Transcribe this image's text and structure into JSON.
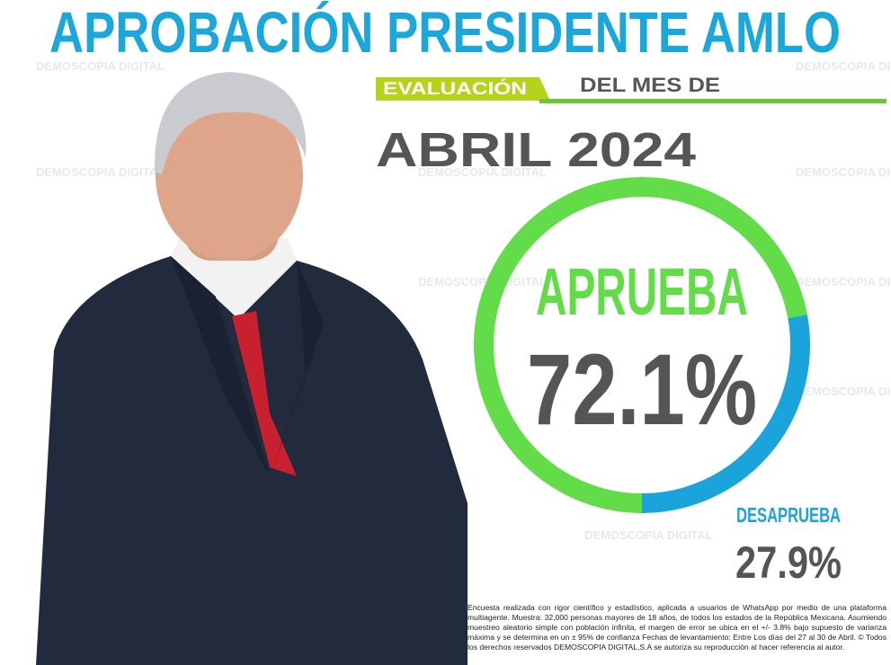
{
  "chart_data": {
    "type": "pie",
    "title": "APROBACIÓN PRESIDENTE AMLO",
    "badge": "EVALUACIÓN",
    "subtitle": "DEL MES DE",
    "period": "ABRIL 2024",
    "watermark": "DEMOSCOPIA DIGITAL",
    "categories": [
      "APRUEBA",
      "DESAPRUEBA"
    ],
    "values": [
      72.1,
      27.9
    ],
    "value_labels": [
      "72.1%",
      "27.9%"
    ],
    "colors": [
      "#63dc4a",
      "#1ba3dc"
    ],
    "note": "Encuesta realizada con rigor científico y estadístico, aplicada a usuarios de WhatsApp por medio de una plataforma multiagente. Muestra: 32,000 personas mayores de 18 años, de todos los estados de la República Mexicana. Asumiendo muestreo aleatorio simple con población infinita, el margen de error se ubica en el +/- 3.8% bajo supuesto de varianza máxima y se determina en un ± 95% de confianza Fechas de levantamiento: Entre Los días del 27 al 30 de Abril. © Todos los derechos reservados DEMOSCOPIA DIGITAL,S.A se autoriza su reproducción al hacer referencia al autor."
  }
}
